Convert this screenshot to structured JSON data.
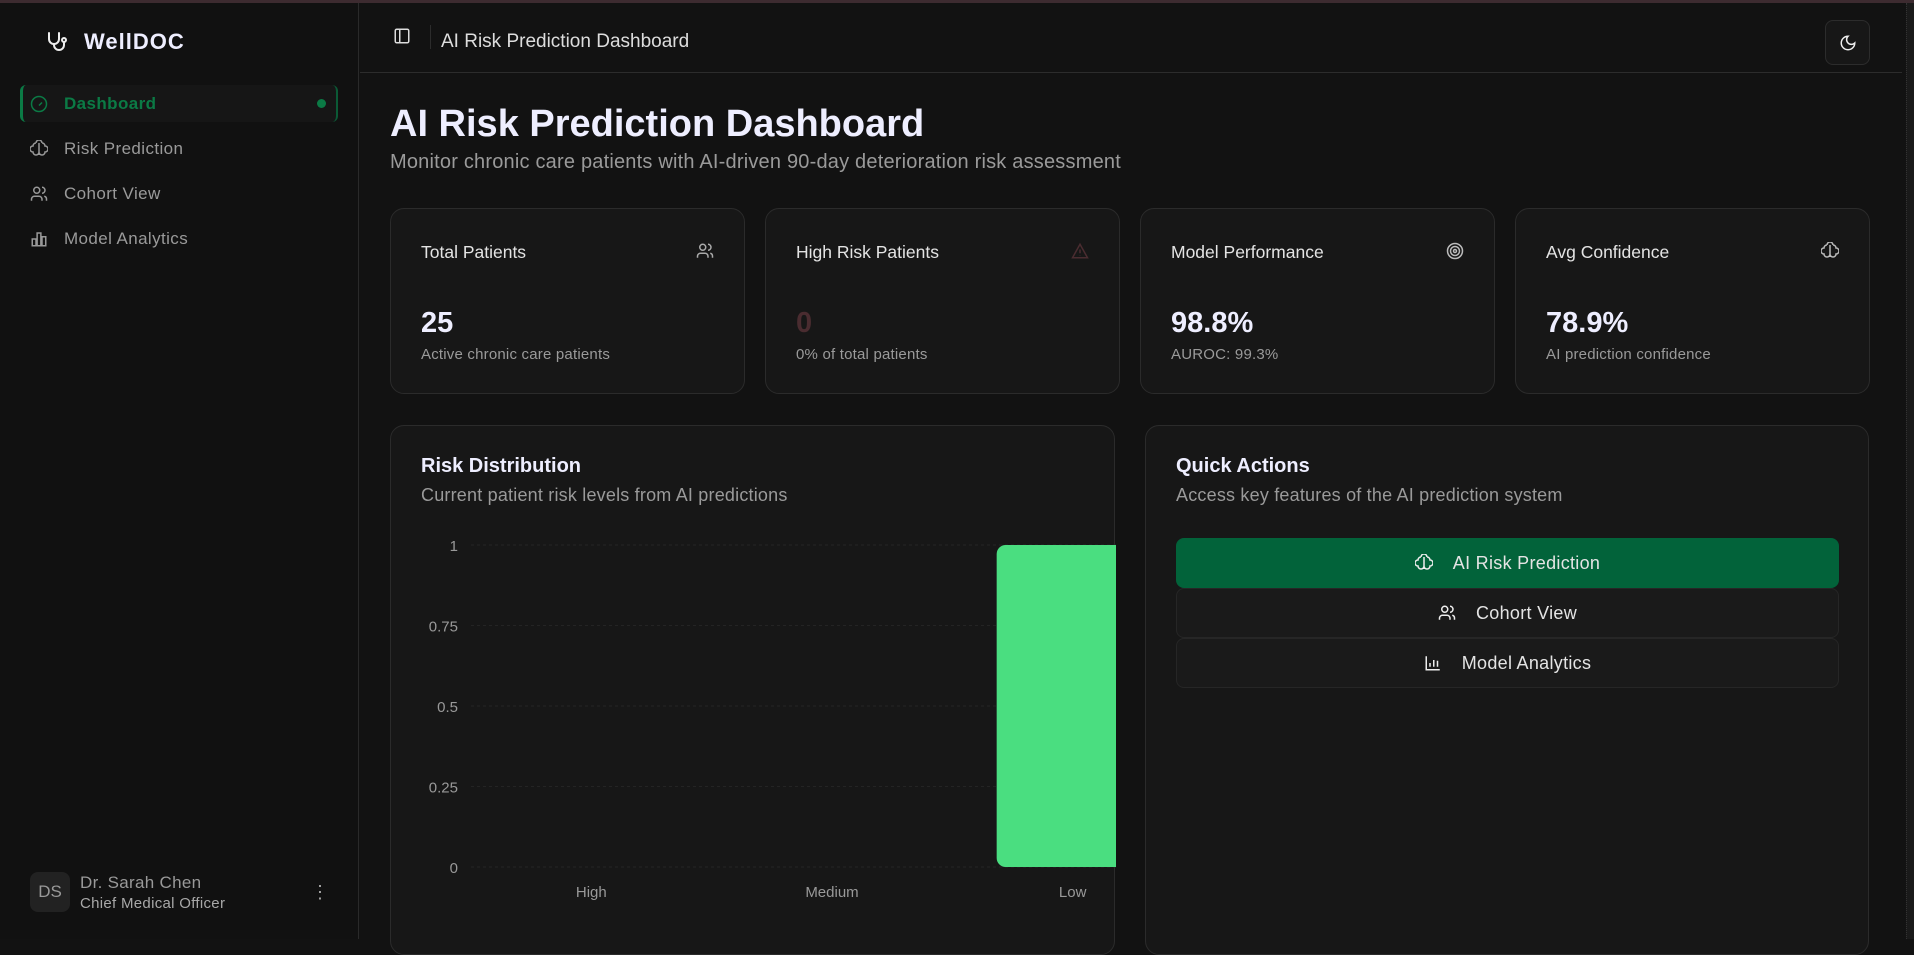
{
  "app": {
    "name": "WellDOC",
    "logo_icon": "stethoscope-icon"
  },
  "sidebar": {
    "items": [
      {
        "label": "Dashboard",
        "icon": "gauge-icon",
        "active": true
      },
      {
        "label": "Risk Prediction",
        "icon": "brain-icon"
      },
      {
        "label": "Cohort View",
        "icon": "users-icon"
      },
      {
        "label": "Model Analytics",
        "icon": "bar-chart-icon"
      }
    ],
    "user": {
      "initials": "DS",
      "name": "Dr. Sarah Chen",
      "role": "Chief Medical Officer"
    }
  },
  "header": {
    "title": "AI Risk Prediction Dashboard",
    "theme_icon": "moon-icon"
  },
  "page": {
    "title": "AI Risk Prediction Dashboard",
    "subtitle": "Monitor chronic care patients with AI-driven 90-day deterioration risk assessment"
  },
  "stats": [
    {
      "title": "Total Patients",
      "value": "25",
      "sub": "Active chronic care patients",
      "icon": "users-icon"
    },
    {
      "title": "High Risk Patients",
      "value": "0",
      "sub": "0% of total patients",
      "icon": "alert-triangle-icon"
    },
    {
      "title": "Model Performance",
      "value": "98.8%",
      "sub": "AUROC: 99.3%",
      "icon": "target-icon"
    },
    {
      "title": "Avg Confidence",
      "value": "78.9%",
      "sub": "AI prediction confidence",
      "icon": "brain-icon"
    }
  ],
  "colors": {
    "accent": "#0b7a45",
    "primary_button": "#02633a",
    "bar": "#4ade80",
    "high_risk_value": "#4a2c30"
  },
  "risk_panel": {
    "title": "Risk Distribution",
    "subtitle": "Current patient risk levels from AI predictions"
  },
  "chart_data": {
    "type": "bar",
    "categories": [
      "High",
      "Medium",
      "Low"
    ],
    "values": [
      0,
      0,
      1
    ],
    "yticks": [
      "0",
      "0.25",
      "0.5",
      "0.75",
      "1"
    ],
    "ylim": [
      0,
      1
    ],
    "grid": true
  },
  "quick_actions": {
    "title": "Quick Actions",
    "subtitle": "Access key features of the AI prediction system",
    "buttons": [
      {
        "label": "AI Risk Prediction",
        "icon": "brain-icon"
      },
      {
        "label": "Cohort View",
        "icon": "users-icon"
      },
      {
        "label": "Model Analytics",
        "icon": "bar-chart-icon"
      }
    ]
  }
}
